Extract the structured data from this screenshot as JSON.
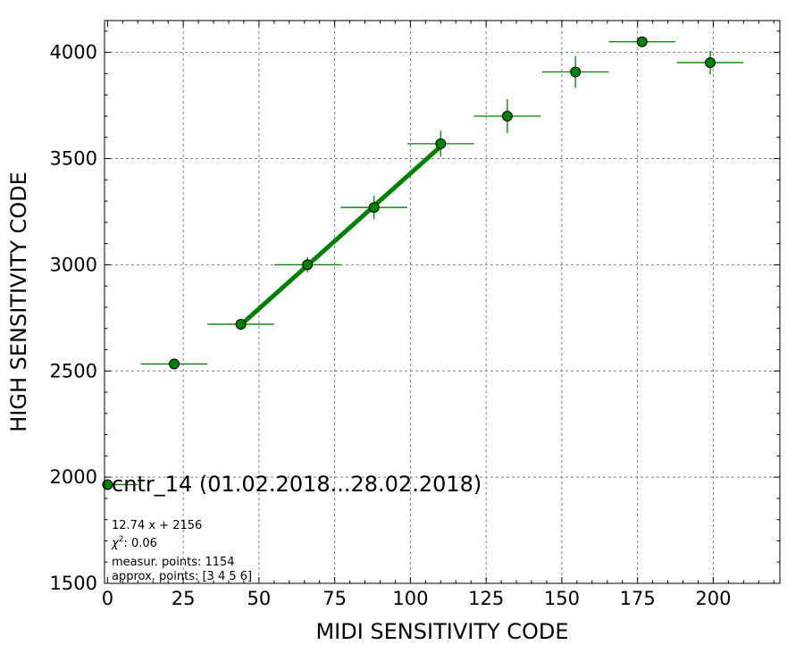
{
  "chart_data": {
    "type": "scatter",
    "xlabel": "MIDI SENSITIVITY CODE",
    "ylabel": "HIGH SENSITIVITY CODE",
    "xlim": [
      -1,
      222
    ],
    "ylim": [
      1500,
      4150
    ],
    "xticks": [
      0,
      25,
      50,
      75,
      100,
      125,
      150,
      175,
      200
    ],
    "xtick_labels": [
      "0",
      "25",
      "50",
      "75",
      "100",
      "125",
      "150",
      "175",
      "200"
    ],
    "yticks": [
      1500,
      2000,
      2500,
      3000,
      3500,
      4000
    ],
    "ytick_labels": [
      "1500",
      "2000",
      "2500",
      "3000",
      "3500",
      "4000"
    ],
    "grid": true,
    "colors": {
      "series": "#008000",
      "marker_edge": "#000000",
      "grid": "#808080"
    },
    "series": [
      {
        "name": "cntr_14 (01.02.2018...28.02.2018)",
        "points": [
          {
            "x": 0,
            "y": 1965,
            "xerr": 10,
            "yerr": 0
          },
          {
            "x": 22,
            "y": 2533,
            "xerr": 11,
            "yerr": 0
          },
          {
            "x": 44,
            "y": 2720,
            "xerr": 11,
            "yerr": 0
          },
          {
            "x": 66,
            "y": 3000,
            "xerr": 11,
            "yerr": 35
          },
          {
            "x": 88,
            "y": 3270,
            "xerr": 11,
            "yerr": 55
          },
          {
            "x": 110,
            "y": 3570,
            "xerr": 11,
            "yerr": 60
          },
          {
            "x": 132,
            "y": 3700,
            "xerr": 11,
            "yerr": 80
          },
          {
            "x": 154.5,
            "y": 3908,
            "xerr": 11,
            "yerr": 75
          },
          {
            "x": 176.5,
            "y": 4050,
            "xerr": 11,
            "yerr": 0
          },
          {
            "x": 199,
            "y": 3952,
            "xerr": 11,
            "yerr": 55
          }
        ]
      }
    ],
    "fit_line": {
      "slope": 12.74,
      "intercept": 2156,
      "x_from": 44,
      "x_to": 110
    },
    "legend_placement": "lower-left",
    "annotations": {
      "fit": "12.74 x + 2156",
      "chi_prefix": "χ",
      "chi_sup": "2",
      "chi_value": ": 0.06",
      "meas": "measur. points: 1154",
      "approx": "approx. points: [3 4 5 6]"
    }
  }
}
